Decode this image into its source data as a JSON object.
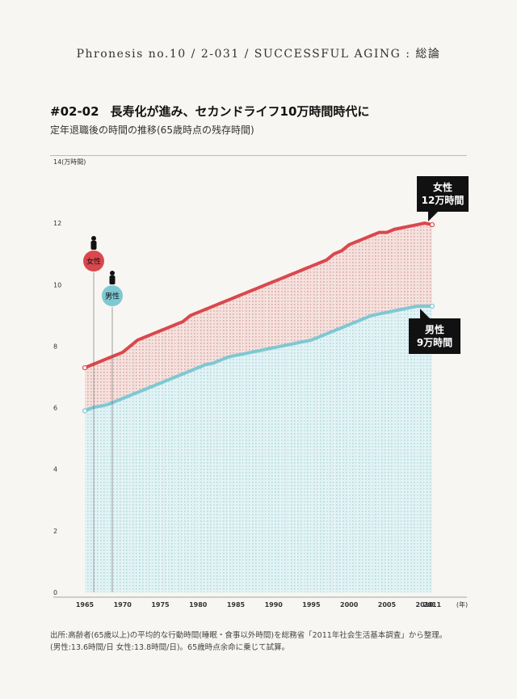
{
  "header": {
    "text": "Phronesis no.10 / 2-031 / SUCCESSFUL AGING : 総論"
  },
  "title": {
    "number": "#02-02",
    "text": "長寿化が進み、セカンドライフ10万時間時代に"
  },
  "subtitle": "定年退職後の時間の推移(65歳時点の残存時間)",
  "colors": {
    "female": "#d9484d",
    "male": "#7ec8d3",
    "female_fill": "#f3dcd8",
    "male_fill": "#dff0f2",
    "callout": "#111111"
  },
  "legend": {
    "female": "女性",
    "male": "男性"
  },
  "callouts": {
    "female": [
      "女性",
      "12万時間"
    ],
    "male": [
      "男性",
      "9万時間"
    ]
  },
  "chart_data": {
    "type": "area",
    "title": "定年退職後の時間の推移(65歳時点の残存時間)",
    "ylabel": "(万時間)",
    "xlabel": "(年)",
    "ylim": [
      0,
      14
    ],
    "yticks": [
      0,
      2,
      4,
      6,
      8,
      10,
      12,
      14
    ],
    "xticks": [
      1965,
      1970,
      1975,
      1980,
      1985,
      1990,
      1995,
      2000,
      2005,
      2010,
      2011
    ],
    "x": [
      1965,
      1966,
      1967,
      1968,
      1969,
      1970,
      1971,
      1972,
      1973,
      1974,
      1975,
      1976,
      1977,
      1978,
      1979,
      1980,
      1981,
      1982,
      1983,
      1984,
      1985,
      1986,
      1987,
      1988,
      1989,
      1990,
      1991,
      1992,
      1993,
      1994,
      1995,
      1996,
      1997,
      1998,
      1999,
      2000,
      2001,
      2002,
      2003,
      2004,
      2005,
      2006,
      2007,
      2008,
      2009,
      2010,
      2011
    ],
    "series": [
      {
        "name": "女性",
        "values": [
          7.3,
          7.4,
          7.5,
          7.6,
          7.7,
          7.8,
          8.0,
          8.2,
          8.3,
          8.4,
          8.5,
          8.6,
          8.7,
          8.8,
          9.0,
          9.1,
          9.2,
          9.3,
          9.4,
          9.5,
          9.6,
          9.7,
          9.8,
          9.9,
          10.0,
          10.1,
          10.2,
          10.3,
          10.4,
          10.5,
          10.6,
          10.7,
          10.8,
          11.0,
          11.1,
          11.3,
          11.4,
          11.5,
          11.6,
          11.7,
          11.7,
          11.8,
          11.85,
          11.9,
          11.95,
          12.0,
          11.95
        ]
      },
      {
        "name": "男性",
        "values": [
          5.9,
          6.0,
          6.05,
          6.1,
          6.2,
          6.3,
          6.4,
          6.5,
          6.6,
          6.7,
          6.8,
          6.9,
          7.0,
          7.1,
          7.2,
          7.3,
          7.4,
          7.45,
          7.55,
          7.65,
          7.7,
          7.75,
          7.8,
          7.85,
          7.9,
          7.95,
          8.0,
          8.05,
          8.1,
          8.15,
          8.2,
          8.3,
          8.4,
          8.5,
          8.6,
          8.7,
          8.8,
          8.9,
          9.0,
          9.05,
          9.1,
          9.15,
          9.2,
          9.25,
          9.3,
          9.3,
          9.3
        ]
      }
    ],
    "grid": false,
    "legend_placement": "left"
  },
  "footnote": [
    "出所:高齢者(65歳以上)の平均的な行動時間(睡眠・食事以外時間)を総務省「2011年社会生活基本調査」から整理。",
    "(男性:13.6時間/日 女性:13.8時間/日)。65歳時点余命に乗じて試算。"
  ]
}
